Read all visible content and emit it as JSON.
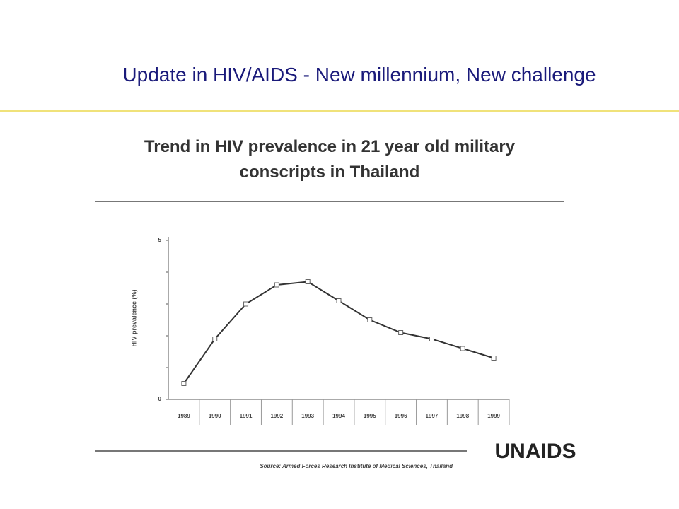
{
  "slide_title": "Update in HIV/AIDS - New millennium, New challenge",
  "source": "Source: Armed Forces Research Institute of Medical Sciences, Thailand",
  "logo": "UNAIDS",
  "chart_data": {
    "type": "line",
    "title": "Trend in HIV prevalence in 21 year old military conscripts in Thailand",
    "ylabel": "HIV prevalence (%)",
    "categories": [
      "1989",
      "1990",
      "1991",
      "1992",
      "1993",
      "1994",
      "1995",
      "1996",
      "1997",
      "1998",
      "1999"
    ],
    "values": [
      0.5,
      1.9,
      3.0,
      3.6,
      3.7,
      3.1,
      2.5,
      2.1,
      1.9,
      1.6,
      1.3
    ],
    "color": "#333333",
    "ylim": [
      0,
      5
    ],
    "yticks": [
      0,
      5
    ],
    "yminor": [
      1,
      2,
      3,
      4
    ]
  }
}
